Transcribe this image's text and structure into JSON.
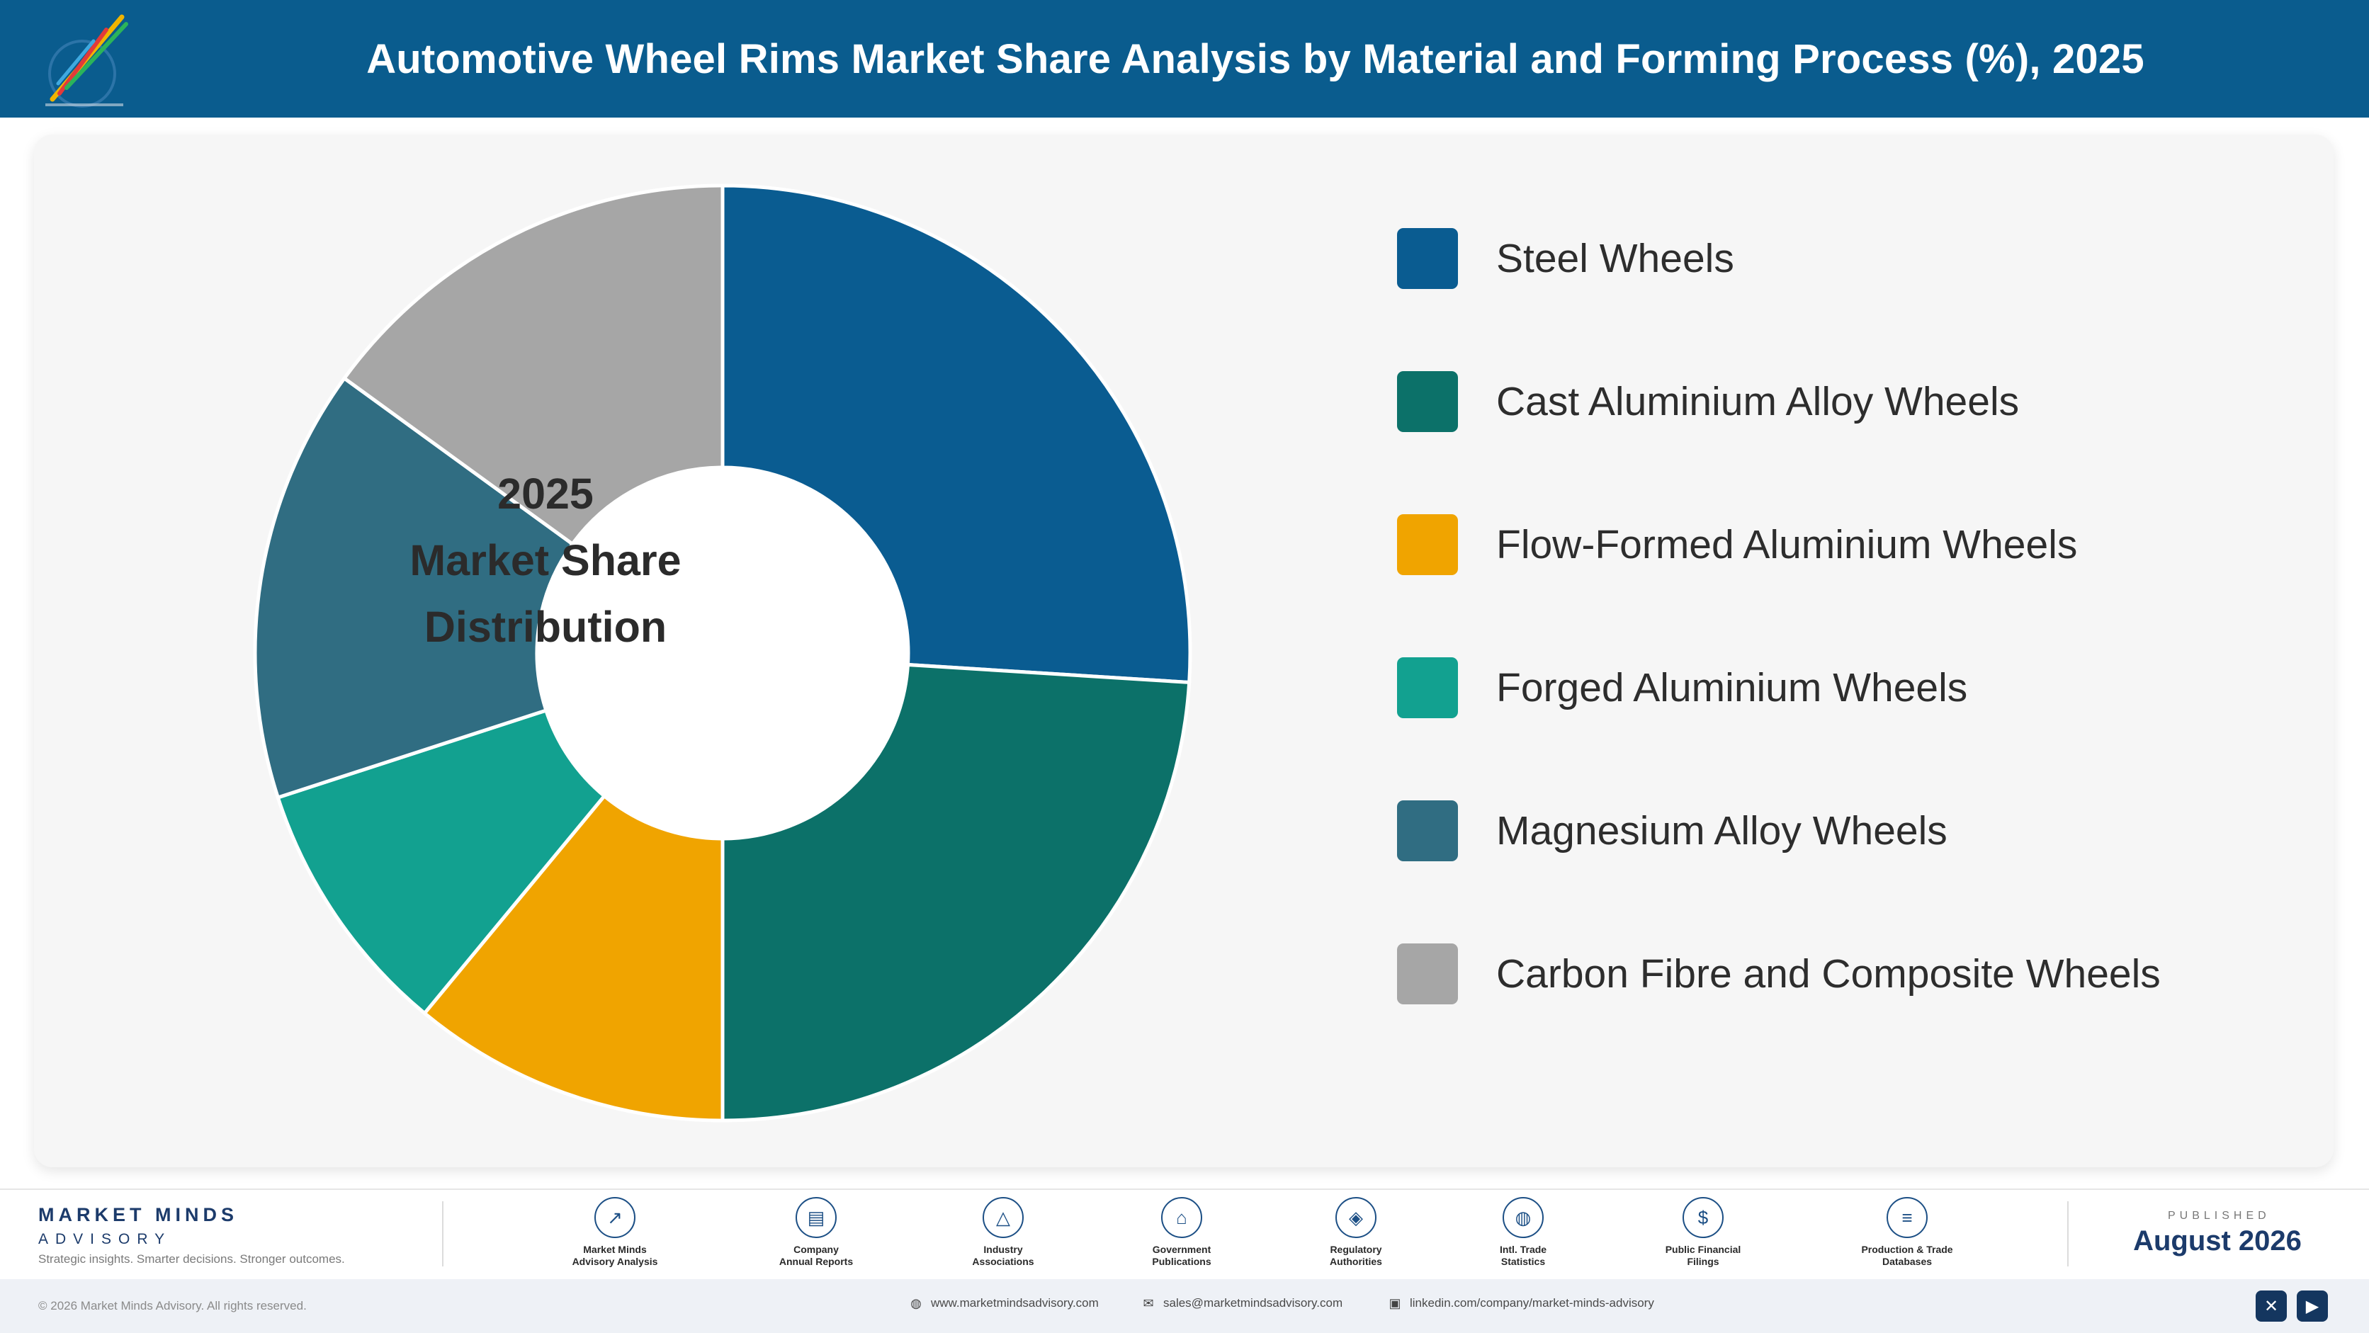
{
  "header": {
    "title": "Automotive Wheel Rims Market Share Analysis by Material and Forming Process (%), 2025"
  },
  "chart": {
    "center_label": [
      "2025",
      "Market Share",
      "Distribution"
    ]
  },
  "chart_data": {
    "type": "pie",
    "title": "Automotive Wheel Rims Market Share Analysis by Material and Forming Process (%), 2025",
    "donut": true,
    "center_text": "2025 Market Share Distribution",
    "legend_position": "right",
    "categories": [
      "Steel Wheels",
      "Cast Aluminium Alloy Wheels",
      "Flow-Formed Aluminium Wheels",
      "Forged Aluminium Wheels",
      "Magnesium Alloy Wheels",
      "Carbon Fibre and Composite Wheels"
    ],
    "values": [
      26,
      24,
      11,
      9,
      15,
      15
    ],
    "colors": [
      "#0a5c91",
      "#0c7169",
      "#f0a400",
      "#12a190",
      "#306d82",
      "#a6a6a6"
    ]
  },
  "footer": {
    "brand_name": "MARKET MINDS",
    "brand_sub": "ADVISORY",
    "tagline": "Strategic insights. Smarter decisions. Stronger outcomes.",
    "sources": [
      {
        "line1": "Market Minds",
        "line2": "Advisory Analysis",
        "icon": "trend-chart-icon"
      },
      {
        "line1": "Company",
        "line2": "Annual Reports",
        "icon": "document-icon"
      },
      {
        "line1": "Industry",
        "line2": "Associations",
        "icon": "network-icon"
      },
      {
        "line1": "Government",
        "line2": "Publications",
        "icon": "government-building-icon"
      },
      {
        "line1": "Regulatory",
        "line2": "Authorities",
        "icon": "shield-check-icon"
      },
      {
        "line1": "Intl. Trade",
        "line2": "Statistics",
        "icon": "globe-icon"
      },
      {
        "line1": "Public Financial",
        "line2": "Filings",
        "icon": "dollar-coin-icon"
      },
      {
        "line1": "Production & Trade",
        "line2": "Databases",
        "icon": "database-icon"
      }
    ],
    "published_label": "PUBLISHED",
    "published_date": "August 2026",
    "copyright": "© 2026 Market Minds Advisory. All rights reserved.",
    "website": "www.marketmindsadvisory.com",
    "email": "sales@marketmindsadvisory.com",
    "linkedin": "linkedin.com/company/market-minds-advisory"
  }
}
